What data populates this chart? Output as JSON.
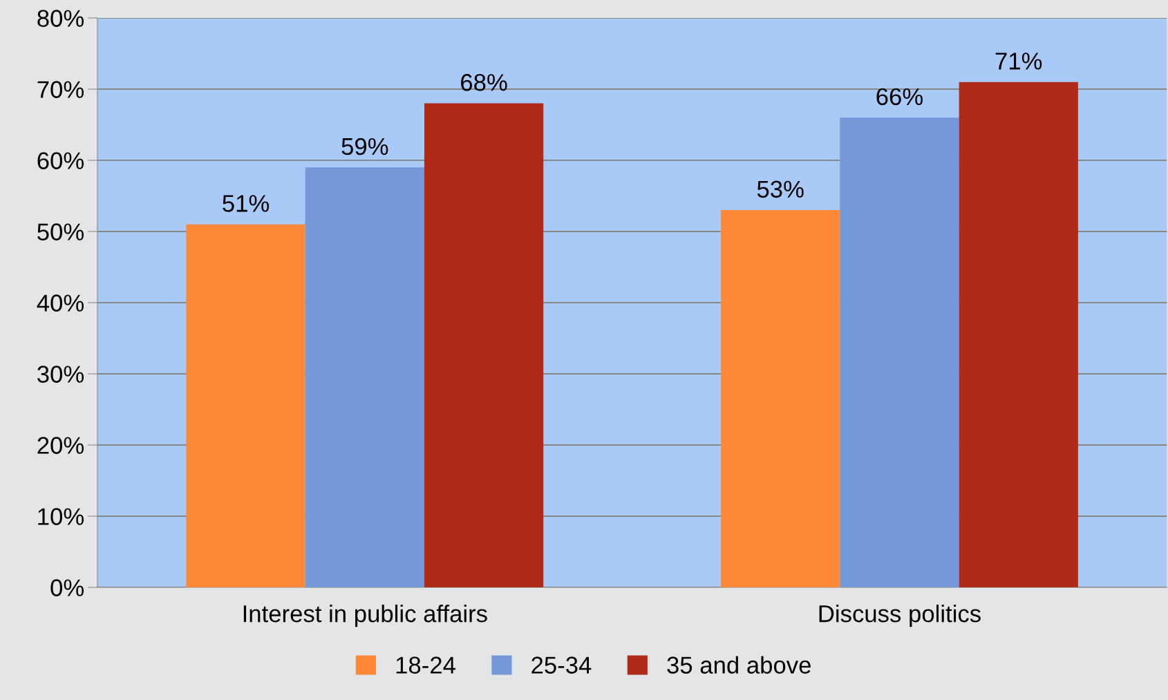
{
  "chart_data": {
    "type": "bar",
    "categories": [
      "Interest in public affairs",
      "Discuss politics"
    ],
    "series": [
      {
        "name": "18-24",
        "color": "#fe8838",
        "values": [
          51,
          53
        ],
        "value_labels": [
          "51%",
          "53%"
        ]
      },
      {
        "name": "25-34",
        "color": "#7599d8",
        "values": [
          59,
          66
        ],
        "value_labels": [
          "59%",
          "66%"
        ]
      },
      {
        "name": "35 and above",
        "color": "#b02b17",
        "values": [
          68,
          71
        ],
        "value_labels": [
          "68%",
          "71%"
        ]
      }
    ],
    "ylim": [
      0,
      80
    ],
    "yticks": [
      {
        "value": 0,
        "label": "0%"
      },
      {
        "value": 10,
        "label": "10%"
      },
      {
        "value": 20,
        "label": "20%"
      },
      {
        "value": 30,
        "label": "30%"
      },
      {
        "value": 40,
        "label": "40%"
      },
      {
        "value": 50,
        "label": "50%"
      },
      {
        "value": 60,
        "label": "60%"
      },
      {
        "value": 70,
        "label": "70%"
      },
      {
        "value": 80,
        "label": "80%"
      }
    ],
    "grid": "y",
    "legend": "bottom"
  }
}
